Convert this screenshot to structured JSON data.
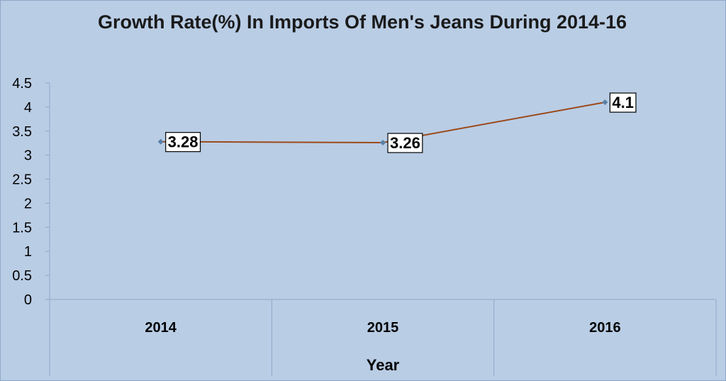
{
  "chart_data": {
    "type": "line",
    "title": "Growth Rate(%) In Imports Of Men's Jeans During 2014-16",
    "xlabel": "Year",
    "ylabel": "",
    "categories": [
      "2014",
      "2015",
      "2016"
    ],
    "series": [
      {
        "values": [
          3.28,
          3.26,
          4.1
        ],
        "color": "#9c4a1a"
      }
    ],
    "ylim": [
      0,
      4.5
    ],
    "yticks": [
      "0",
      "0.5",
      "1",
      "1.5",
      "2",
      "2.5",
      "3",
      "3.5",
      "4",
      "4.5"
    ],
    "data_labels": [
      "3.28",
      "3.26",
      "4.1"
    ],
    "grid": false,
    "legend": "none",
    "colors": {
      "background": "#b9cde5",
      "line": "#9c4a1a",
      "marker": "#5b7fa6"
    }
  }
}
